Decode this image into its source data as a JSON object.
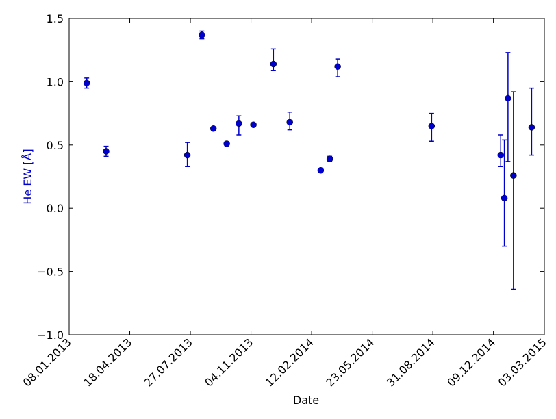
{
  "chart_data": {
    "type": "errorbar",
    "xlabel": "Date",
    "ylabel": "He EW [Å]",
    "color": "#0000cc",
    "x": [
      "2013-02-06",
      "2013-03-10",
      "2013-07-22",
      "2013-08-15",
      "2013-09-03",
      "2013-09-25",
      "2013-10-15",
      "2013-11-08",
      "2013-12-11",
      "2014-01-07",
      "2014-02-27",
      "2014-03-14",
      "2014-03-27",
      "2014-08-29",
      "2014-12-21",
      "2014-12-27",
      "2015-01-02",
      "2015-01-11",
      "2015-02-10"
    ],
    "values": [
      0.99,
      0.45,
      0.42,
      1.37,
      0.63,
      0.51,
      0.67,
      0.66,
      1.14,
      0.68,
      0.3,
      0.39,
      1.12,
      0.65,
      0.42,
      0.08,
      0.87,
      0.26,
      0.64
    ],
    "err_minus": [
      0.04,
      0.04,
      0.09,
      0.03,
      0.01,
      0.015,
      0.09,
      0.01,
      0.05,
      0.06,
      0.01,
      0.02,
      0.08,
      0.12,
      0.09,
      0.38,
      0.5,
      0.9,
      0.22
    ],
    "err_plus": [
      0.04,
      0.04,
      0.1,
      0.03,
      0.01,
      0.015,
      0.06,
      0.01,
      0.12,
      0.08,
      0.01,
      0.02,
      0.06,
      0.1,
      0.16,
      0.46,
      0.36,
      0.66,
      0.31
    ],
    "xlim": [
      "2013-01-08",
      "2015-03-03"
    ],
    "xticks": [
      {
        "value": "2013-01-08",
        "label": "08.01.2013"
      },
      {
        "value": "2013-04-18",
        "label": "18.04.2013"
      },
      {
        "value": "2013-07-27",
        "label": "27.07.2013"
      },
      {
        "value": "2013-11-04",
        "label": "04.11.2013"
      },
      {
        "value": "2014-02-12",
        "label": "12.02.2014"
      },
      {
        "value": "2014-05-23",
        "label": "23.05.2014"
      },
      {
        "value": "2014-08-31",
        "label": "31.08.2014"
      },
      {
        "value": "2014-12-09",
        "label": "09.12.2014"
      },
      {
        "value": "2015-03-03",
        "label": "03.03.2015"
      }
    ],
    "ylim": [
      -1.0,
      1.5
    ],
    "yticks": [
      {
        "value": -1.0,
        "label": "−1.0"
      },
      {
        "value": -0.5,
        "label": "−0.5"
      },
      {
        "value": 0.0,
        "label": "0.0"
      },
      {
        "value": 0.5,
        "label": "0.5"
      },
      {
        "value": 1.0,
        "label": "1.0"
      },
      1.5
    ]
  }
}
